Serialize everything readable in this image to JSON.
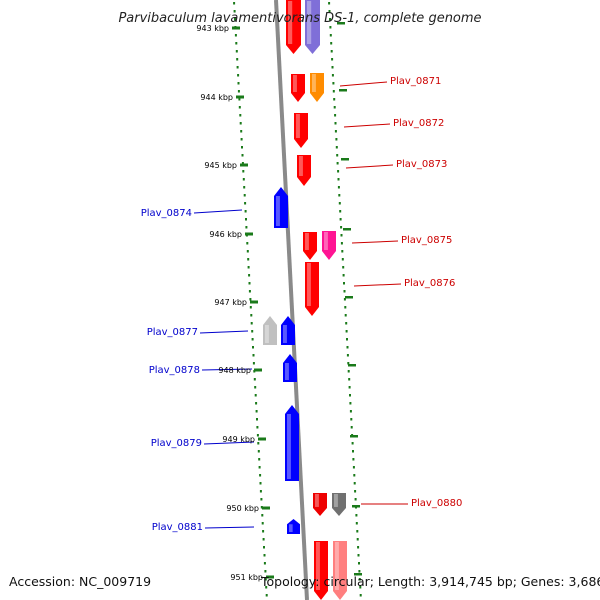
{
  "title": "Parvibaculum lavamentivorans DS-1, complete genome",
  "accession": "Accession: NC_009719",
  "topology": "Topology: circular; Length: 3,914,745 bp; Genes: 3,686",
  "colors": {
    "forward_label": "#cc0000",
    "reverse_label": "#0000cc",
    "tick": "#1a7a1a",
    "backbone": "#808080"
  },
  "kbp_labels": [
    "943 kbp",
    "944 kbp",
    "945 kbp",
    "946 kbp",
    "947 kbp",
    "948 kbp",
    "949 kbp",
    "950 kbp",
    "951 kbp"
  ],
  "gene_labels": [
    {
      "text": "Plav_0871",
      "strand": "forward"
    },
    {
      "text": "Plav_0872",
      "strand": "forward"
    },
    {
      "text": "Plav_0873",
      "strand": "forward"
    },
    {
      "text": "Plav_0874",
      "strand": "reverse"
    },
    {
      "text": "Plav_0875",
      "strand": "forward"
    },
    {
      "text": "Plav_0876",
      "strand": "forward"
    },
    {
      "text": "Plav_0877",
      "strand": "reverse"
    },
    {
      "text": "Plav_0878",
      "strand": "reverse"
    },
    {
      "text": "Plav_0879",
      "strand": "reverse"
    },
    {
      "text": "Plav_0880",
      "strand": "forward"
    },
    {
      "text": "Plav_0881",
      "strand": "reverse"
    }
  ],
  "genes": [
    {
      "strand": "forward",
      "color": "#ff0000"
    },
    {
      "strand": "forward",
      "color": "#7f6fd8"
    },
    {
      "strand": "forward",
      "color": "#ff0000"
    },
    {
      "strand": "forward",
      "color": "#ff8c00"
    },
    {
      "strand": "forward",
      "color": "#ff0000"
    },
    {
      "strand": "forward",
      "color": "#ff0000"
    },
    {
      "strand": "reverse",
      "color": "#0000ff"
    },
    {
      "strand": "forward",
      "color": "#ff0000"
    },
    {
      "strand": "forward",
      "color": "#ff1493"
    },
    {
      "strand": "forward",
      "color": "#ff0000"
    },
    {
      "strand": "reverse",
      "color": "#c0c0c0"
    },
    {
      "strand": "reverse",
      "color": "#0000ff"
    },
    {
      "strand": "reverse",
      "color": "#0000ff"
    },
    {
      "strand": "reverse",
      "color": "#0000ff"
    },
    {
      "strand": "forward",
      "color": "#ee0000"
    },
    {
      "strand": "forward",
      "color": "#707070"
    },
    {
      "strand": "reverse",
      "color": "#0000ff"
    },
    {
      "strand": "forward",
      "color": "#ff0000"
    },
    {
      "strand": "forward",
      "color": "#ff7f7f"
    }
  ]
}
